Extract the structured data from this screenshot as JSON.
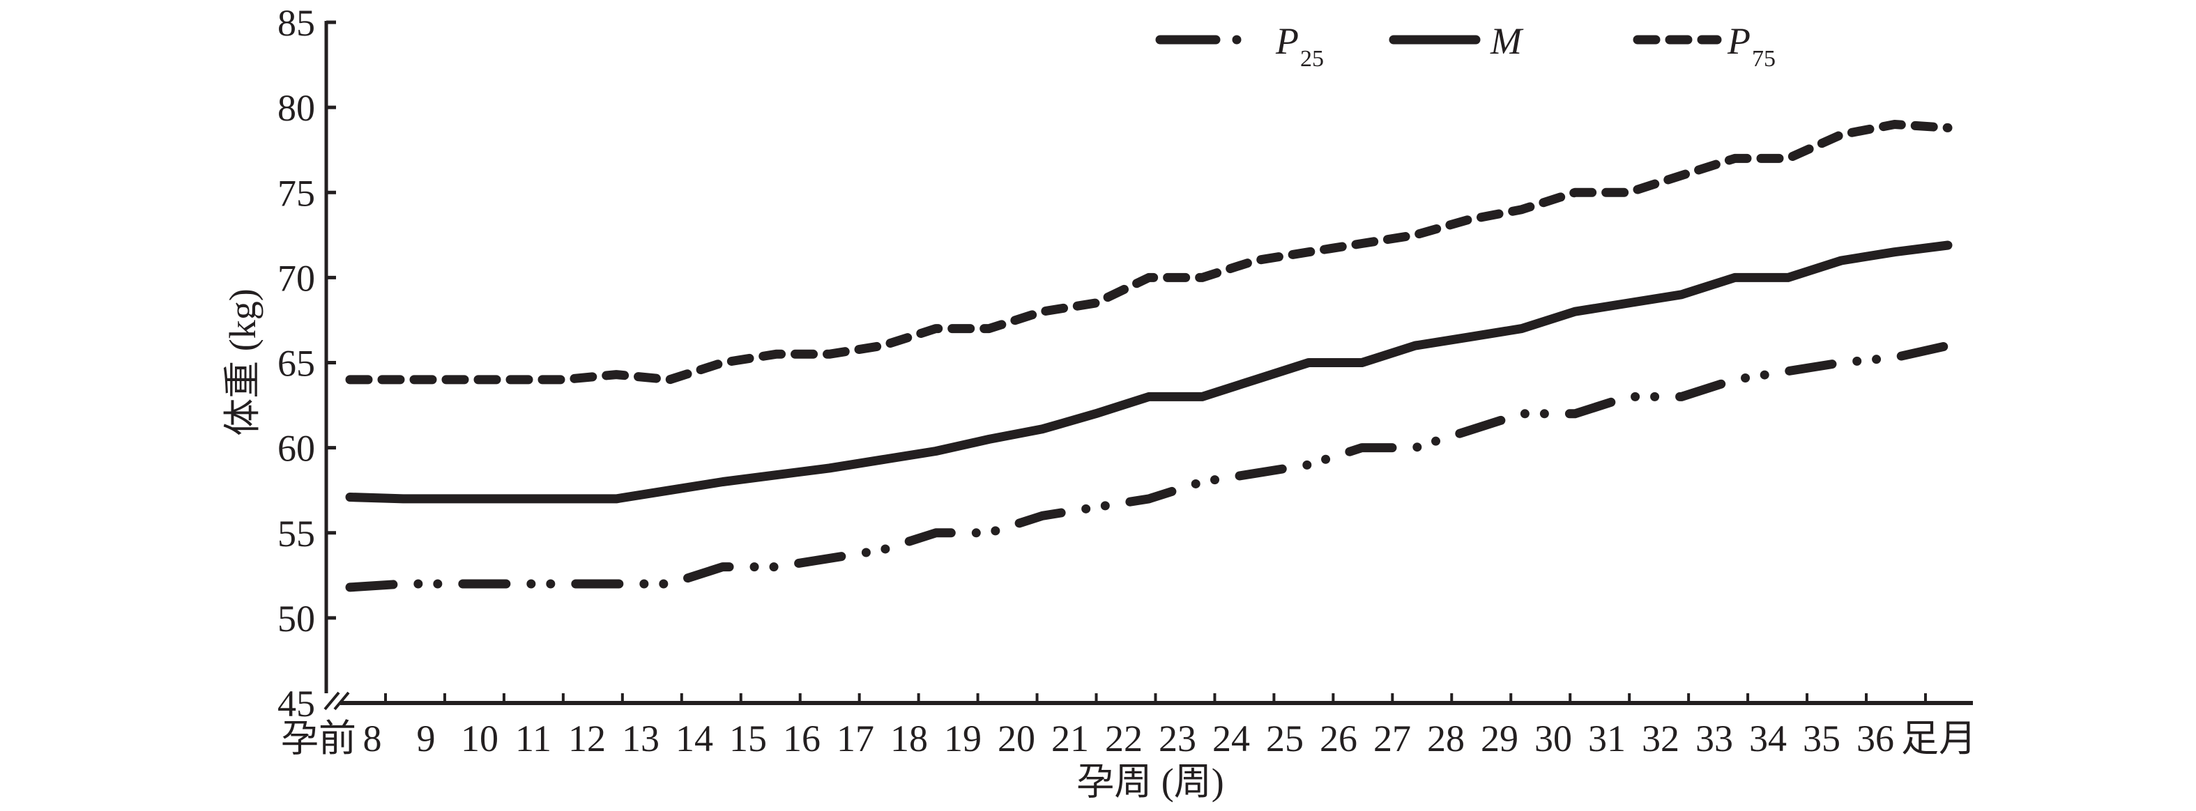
{
  "chart_data": {
    "type": "line",
    "title": "",
    "xlabel": "孕周 (周)",
    "ylabel": "体重 (kg)",
    "ylim": [
      45,
      85
    ],
    "yticks": [
      45,
      50,
      55,
      60,
      65,
      70,
      75,
      80,
      85
    ],
    "y_axis_break": true,
    "grid": false,
    "legend_position": "top-center",
    "categories": [
      "孕前",
      "8",
      "9",
      "10",
      "11",
      "12",
      "13",
      "14",
      "15",
      "16",
      "17",
      "18",
      "19",
      "20",
      "21",
      "22",
      "23",
      "24",
      "25",
      "26",
      "27",
      "28",
      "29",
      "30",
      "31",
      "32",
      "33",
      "34",
      "35",
      "36",
      "足月"
    ],
    "series": [
      {
        "name": "P25",
        "legend_main": "P",
        "legend_sub": "25",
        "style": "dash-dot-dot",
        "values": [
          51.8,
          52,
          52,
          52,
          52,
          52,
          52,
          53,
          53,
          53.5,
          54,
          55,
          55,
          56,
          56.5,
          57,
          58,
          58.5,
          59,
          60,
          60,
          61,
          62,
          62,
          63,
          63,
          64,
          64.5,
          65,
          65.3,
          66
        ]
      },
      {
        "name": "M",
        "legend_main": "M",
        "legend_sub": "",
        "style": "solid",
        "values": [
          57.1,
          57,
          57,
          57,
          57,
          57,
          57.5,
          58,
          58.4,
          58.8,
          59.3,
          59.8,
          60.5,
          61.1,
          62,
          63,
          63,
          64,
          65,
          65,
          66,
          66.5,
          67,
          68,
          68.5,
          69,
          70,
          70,
          71,
          71.5,
          71.9
        ]
      },
      {
        "name": "P75",
        "legend_main": "P",
        "legend_sub": "75",
        "style": "dashed",
        "values": [
          64,
          64,
          64,
          64,
          64,
          64.3,
          64,
          65,
          65.5,
          65.5,
          66,
          67,
          67,
          68,
          68.5,
          70,
          70,
          71,
          71.5,
          72,
          72.5,
          73.4,
          74,
          75,
          75,
          76,
          77,
          77,
          78.4,
          79,
          78.8
        ]
      }
    ]
  },
  "colors": {
    "ink": "#231f20",
    "background": "#ffffff"
  }
}
